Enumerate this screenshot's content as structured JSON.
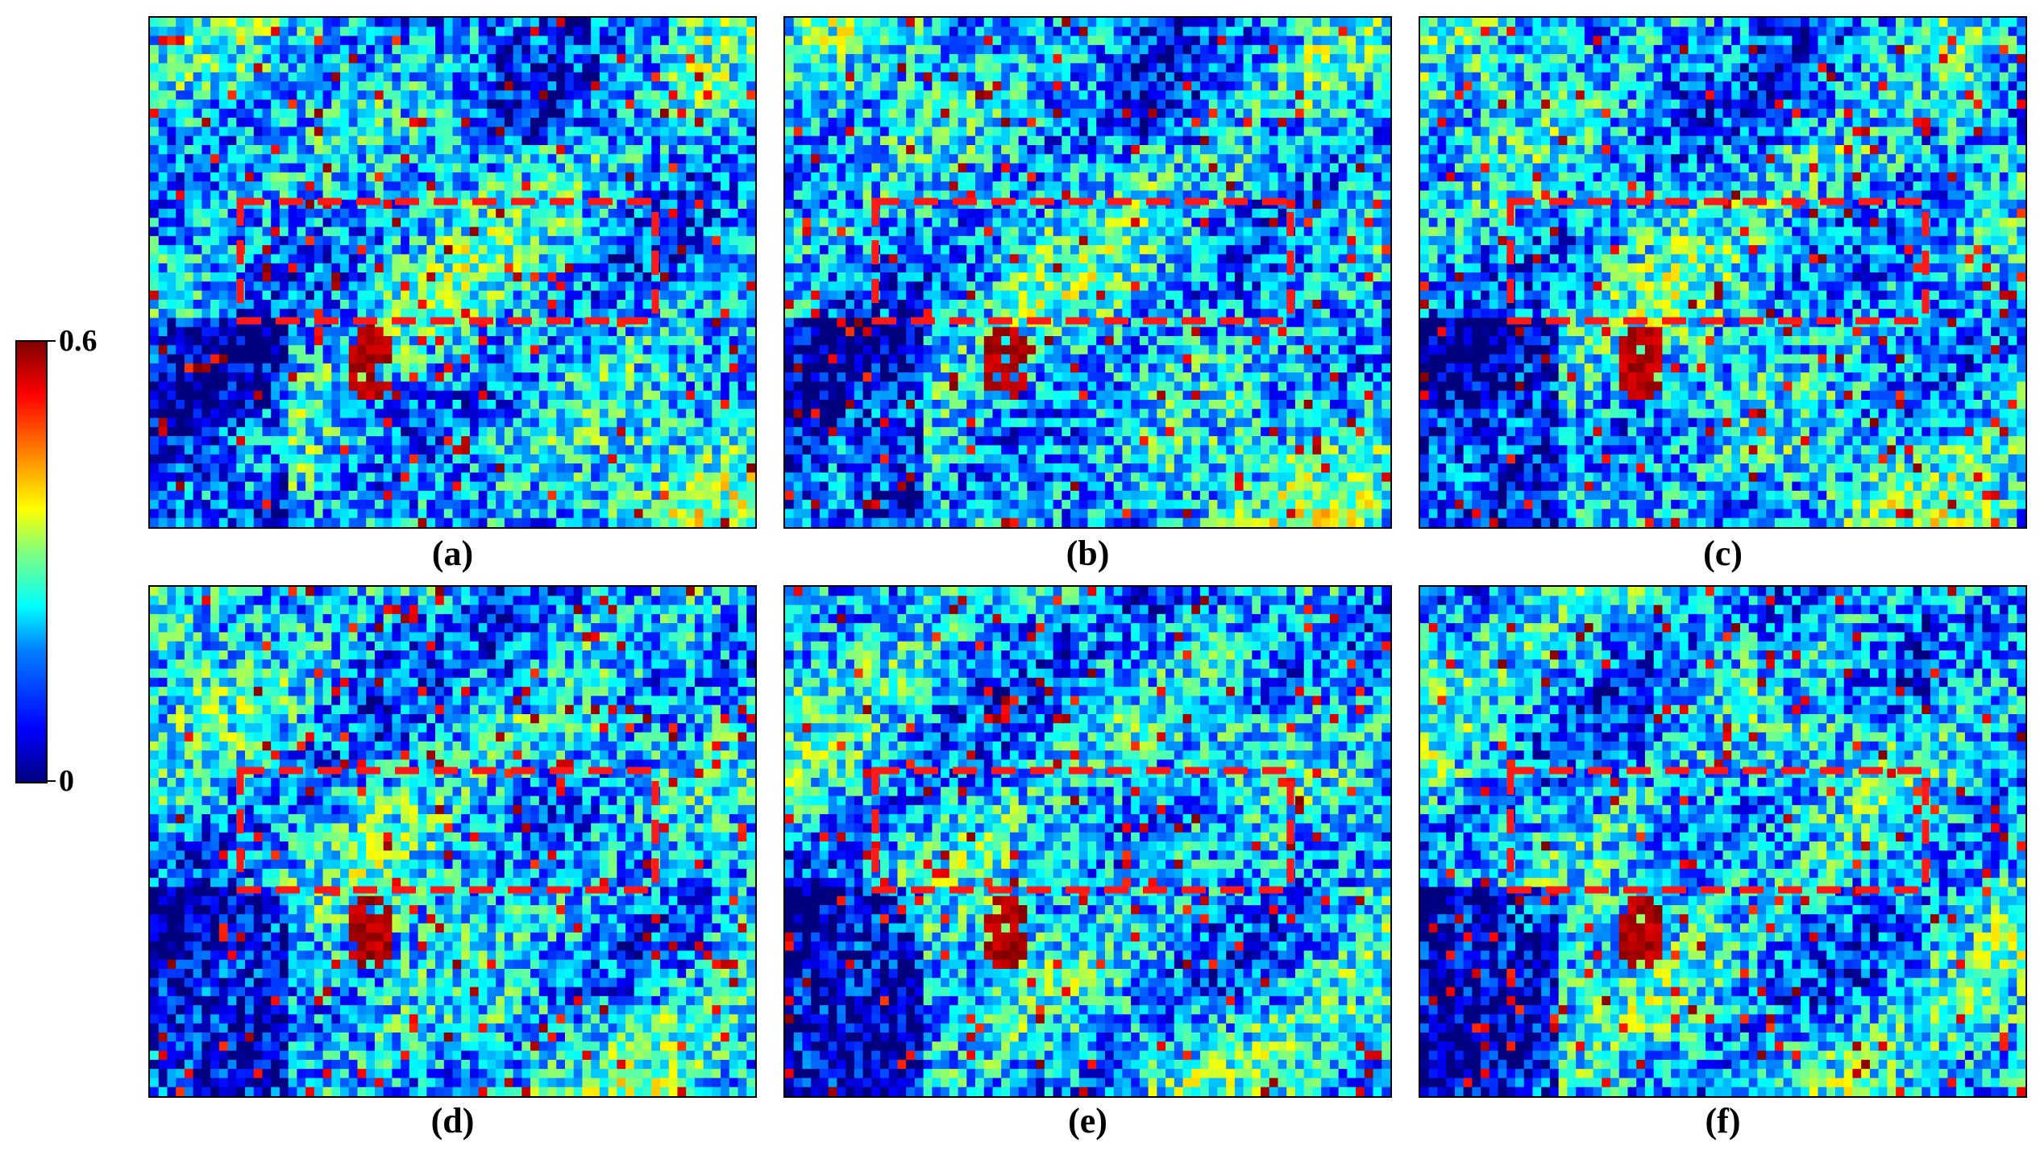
{
  "colorbar": {
    "max_label": "0.6",
    "min_label": "0",
    "colormap": [
      "#00007f",
      "#0000ff",
      "#0080ff",
      "#00ffff",
      "#7fff7f",
      "#ffff00",
      "#ff8000",
      "#ff0000",
      "#7f0000"
    ]
  },
  "highlight_color": "#ff1a1a",
  "panels": [
    {
      "label": "(a)",
      "variant": 0
    },
    {
      "label": "(b)",
      "variant": 1
    },
    {
      "label": "(c)",
      "variant": 2
    },
    {
      "label": "(d)",
      "variant": 3
    },
    {
      "label": "(e)",
      "variant": 4
    },
    {
      "label": "(f)",
      "variant": 5
    }
  ]
}
